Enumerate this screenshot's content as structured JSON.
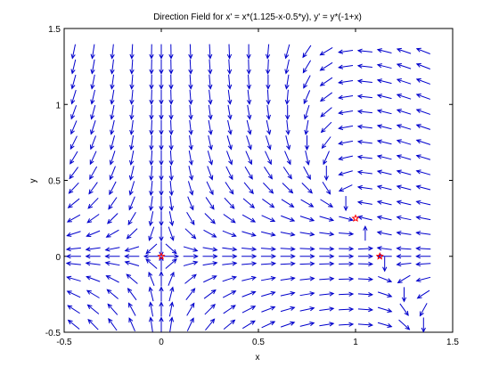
{
  "chart_data": {
    "type": "vector-field",
    "title": "Direction Field for x' = x*(1.125-x-0.5*y), y' = y*(-1+x)",
    "xlabel": "x",
    "ylabel": "y",
    "xlim": [
      -0.5,
      1.5
    ],
    "ylim": [
      -0.5,
      1.5
    ],
    "xticks": [
      -0.5,
      0,
      0.5,
      1,
      1.5
    ],
    "yticks": [
      -0.5,
      0,
      0.5,
      1,
      1.5
    ],
    "xtick_labels": [
      "-0.5",
      "0",
      "0.5",
      "1",
      "1.5"
    ],
    "ytick_labels": [
      "-0.5",
      "0",
      "0.5",
      "1",
      "1.5"
    ],
    "system": {
      "dx": "x*(1.125-x-0.5*y)",
      "dy": "y*(-1+x)"
    },
    "grid_x": [
      -0.45,
      -0.35,
      -0.25,
      -0.15,
      -0.05,
      0.0,
      0.05,
      0.15,
      0.25,
      0.35,
      0.45,
      0.55,
      0.65,
      0.75,
      0.85,
      0.95,
      1.05,
      1.15,
      1.25,
      1.35
    ],
    "grid_y": [
      -0.45,
      -0.35,
      -0.25,
      -0.15,
      -0.05,
      0.0,
      0.05,
      0.15,
      0.25,
      0.35,
      0.45,
      0.55,
      0.65,
      0.75,
      0.85,
      0.95,
      1.05,
      1.15,
      1.25,
      1.35
    ],
    "arrow_color": "#0000cc",
    "equilibria": [
      {
        "x": 0,
        "y": 0
      },
      {
        "x": 1.125,
        "y": 0
      },
      {
        "x": 1,
        "y": 0.25
      }
    ],
    "equilibrium_color": "#ff0000",
    "grid": false
  }
}
